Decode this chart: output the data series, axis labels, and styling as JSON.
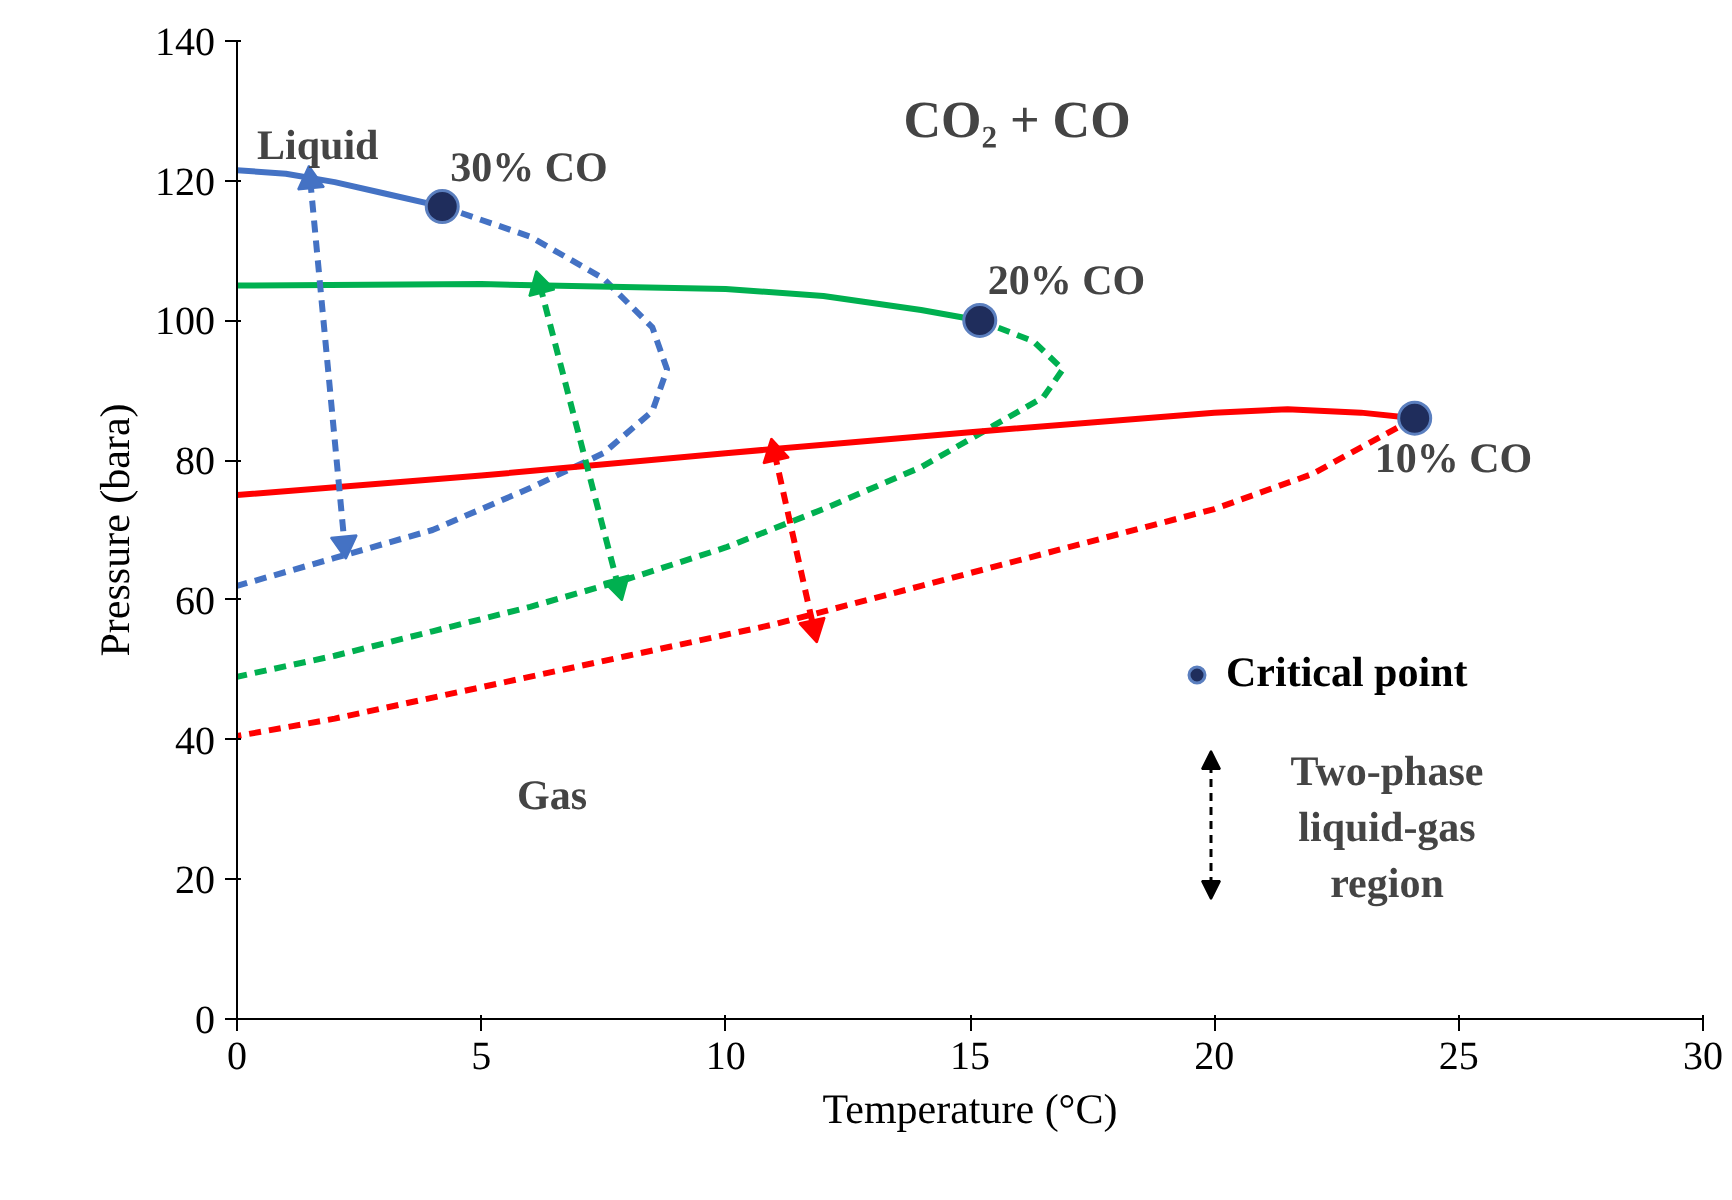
{
  "chart_data": {
    "type": "line",
    "title": "CO₂ + CO",
    "xlabel": "Temperature (°C)",
    "ylabel": "Pressure (bara)",
    "xlim": [
      0,
      30
    ],
    "xticks": [
      0,
      5,
      10,
      15,
      20,
      25,
      30
    ],
    "ylim": [
      0,
      140
    ],
    "yticks": [
      0,
      20,
      40,
      60,
      80,
      100,
      120,
      140
    ],
    "grid": false,
    "legend": "right",
    "series": [
      {
        "color": "#4472c4",
        "line_style": "solid",
        "x": [
          0,
          1,
          2,
          3,
          4.2
        ],
        "values": [
          121.5,
          121,
          119.8,
          118.2,
          116.3
        ]
      },
      {
        "color": "#4472c4",
        "line_style": "dashed",
        "x": [
          4.2,
          6,
          7.5,
          8.5,
          8.8,
          8.5,
          7.5,
          6,
          4,
          2,
          0
        ],
        "values": [
          116.3,
          112,
          106,
          99,
          93,
          87,
          81,
          76,
          70,
          66,
          62
        ]
      },
      {
        "color": "#00b050",
        "line_style": "solid",
        "x": [
          0,
          5,
          10,
          12,
          14,
          15.2
        ],
        "values": [
          105,
          105.2,
          104.5,
          103.5,
          101.5,
          100
        ]
      },
      {
        "color": "#00b050",
        "line_style": "dashed",
        "x": [
          15.2,
          16.3,
          16.9,
          16.5,
          15.5,
          14,
          12,
          10,
          8,
          6,
          4,
          2,
          0
        ],
        "values": [
          100,
          97,
          93,
          89,
          85,
          79,
          73,
          67.5,
          63,
          59,
          55.5,
          52,
          49
        ]
      },
      {
        "color": "#ff0000",
        "line_style": "solid",
        "x": [
          0,
          5,
          10,
          15,
          20,
          21.5,
          23,
          24.1
        ],
        "values": [
          75,
          77.8,
          81,
          84,
          86.8,
          87.3,
          86.8,
          86
        ]
      },
      {
        "color": "#ff0000",
        "line_style": "dashed",
        "x": [
          24.1,
          22,
          20,
          17,
          14,
          11,
          8,
          5,
          2,
          0
        ],
        "values": [
          86,
          78,
          73,
          67.5,
          62,
          56.5,
          52,
          47.5,
          43,
          40.5
        ]
      },
      {
        "color": "#4472c4",
        "line_style": "dashed",
        "marker": "triangle",
        "x": [
          1.5,
          2.2
        ],
        "values": [
          120,
          68
        ]
      },
      {
        "color": "#00b050",
        "line_style": "dashed",
        "marker": "triangle",
        "x": [
          6.2,
          7.8
        ],
        "values": [
          105,
          62
        ]
      },
      {
        "color": "#ff0000",
        "line_style": "dashed",
        "marker": "triangle",
        "x": [
          11,
          11.8
        ],
        "values": [
          81,
          56
        ]
      },
      {
        "type": "scatter",
        "name": "Critical point",
        "color": "#1f2d5c",
        "marker": "circle",
        "x": [
          4.2,
          15.2,
          24.1
        ],
        "values": [
          116.3,
          100,
          86
        ]
      }
    ],
    "annotations": [
      "Liquid",
      "Gas",
      {
        "text": "30% CO",
        "x": 4.2,
        "y": 116.3
      },
      {
        "text": "20% CO",
        "x": 15.2,
        "y": 100
      },
      {
        "text": "10% CO",
        "x": 24.1,
        "y": 86
      },
      "Two-phase liquid-gas region"
    ]
  }
}
